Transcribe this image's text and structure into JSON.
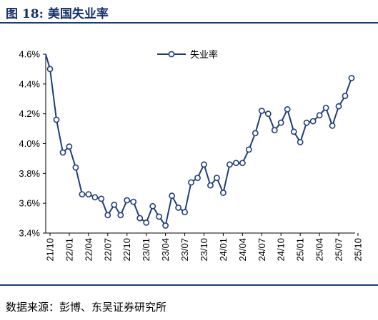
{
  "header": {
    "figure_label": "图 18:",
    "title": "美国失业率"
  },
  "source": {
    "text": "数据来源：彭博、东吴证券研究所"
  },
  "colors": {
    "line": "#1f3e78",
    "marker_fill": "#ffffff",
    "rule": "#1a3b7a",
    "title": "#14306b"
  },
  "chart_data": {
    "type": "line",
    "title": "",
    "xlabel": "",
    "ylabel": "",
    "ylim": [
      3.4,
      4.6
    ],
    "y_ticks": [
      "3.4%",
      "3.6%",
      "3.8%",
      "4.0%",
      "4.2%",
      "4.4%",
      "4.6%"
    ],
    "y_tick_values": [
      3.4,
      3.6,
      3.8,
      4.0,
      4.2,
      4.4,
      4.6
    ],
    "x_tick_labels": [
      "21/10",
      "22/01",
      "22/04",
      "22/07",
      "22/10",
      "23/01",
      "23/04",
      "23/07",
      "23/10",
      "24/01",
      "24/04",
      "24/07",
      "24/10",
      "25/01",
      "25/04",
      "25/07",
      "25/10"
    ],
    "x_tick_indices": [
      0,
      3,
      6,
      9,
      12,
      15,
      18,
      21,
      24,
      27,
      30,
      33,
      36,
      39,
      42,
      45,
      48
    ],
    "legend_position": "top-center",
    "grid": false,
    "series": [
      {
        "name": "失业率",
        "line_start_value": 4.6,
        "values": [
          4.5,
          4.16,
          3.94,
          3.98,
          3.84,
          3.66,
          3.66,
          3.64,
          3.63,
          3.52,
          3.59,
          3.52,
          3.62,
          3.61,
          3.5,
          3.47,
          3.58,
          3.51,
          3.45,
          3.65,
          3.57,
          3.54,
          3.74,
          3.77,
          3.86,
          3.72,
          3.77,
          3.67,
          3.86,
          3.87,
          3.87,
          3.96,
          4.07,
          4.22,
          4.2,
          4.09,
          4.14,
          4.23,
          4.08,
          4.01,
          4.14,
          4.15,
          4.19,
          4.24,
          4.12,
          4.25,
          4.32,
          4.44
        ]
      }
    ]
  }
}
